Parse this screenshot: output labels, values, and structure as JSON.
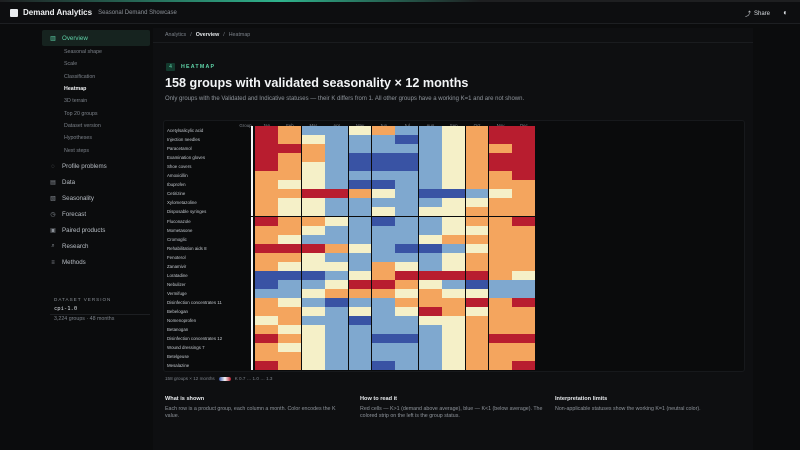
{
  "app": {
    "title": "Demand Analytics",
    "subtitle": "Seasonal Demand Showcase",
    "share_label": "Share",
    "theme_icon": "theme-toggle-icon"
  },
  "sidebar": {
    "items": [
      {
        "label": "Overview",
        "icon": "chart-icon",
        "active": true
      },
      {
        "label": "Profile problems",
        "icon": "dot-icon"
      },
      {
        "label": "Data",
        "icon": "file-icon"
      },
      {
        "label": "Seasonality",
        "icon": "doc-icon"
      },
      {
        "label": "Forecast",
        "icon": "clock-icon"
      },
      {
        "label": "Paired products",
        "icon": "box-icon"
      },
      {
        "label": "Research",
        "icon": "search-icon"
      },
      {
        "label": "Methods",
        "icon": "list-icon"
      }
    ],
    "subitems": [
      "Seasonal shape",
      "Scale",
      "Classification",
      "Heatmap",
      "3D terrain",
      "Top 20 groups",
      "Dataset version",
      "Hypotheses",
      "Next steps"
    ],
    "active_subitem": "Heatmap",
    "dataset": {
      "label": "DATASET VERSION",
      "version": "cpi-1.0",
      "meta": "3,224 groups · 48 months"
    }
  },
  "breadcrumb": [
    "Analytics",
    "Overview",
    "Heatmap"
  ],
  "section": {
    "number": "4",
    "tag": "HEATMAP",
    "title": "158 groups with validated seasonality × 12 months",
    "subtitle": "Only groups with the Validated and Indicative statuses — their K differs from 1. All other groups have a working K=1 and are not shown."
  },
  "heatmap": {
    "group_header": "Group",
    "months": [
      "Jan",
      "Feb",
      "Mar",
      "Apr",
      "May",
      "Jun",
      "Jul",
      "Aug",
      "Sep",
      "Oct",
      "Nov",
      "Dec"
    ],
    "rows": [
      "Acetylsalicylic acid",
      "Injection needles",
      "Paracetamol",
      "Examination gloves",
      "Shoe covers",
      "Amoxicillin",
      "Ibuprofen",
      "Cetirizine",
      "Xylometazoline",
      "Disposable syringes",
      "Fluconazole",
      "Mometasone",
      "Cromoglic",
      "Rehabilitation aids 8",
      "Fenoterol",
      "Zanamivir",
      "Loratadine",
      "Nebulizer",
      "Vermifuge",
      "Disinfection concentrates 11",
      "Bebelogan",
      "Nomenoprofen",
      "Betanogan",
      "Disinfection concentrates 12",
      "Wound dressings 7",
      "Betelgeuse",
      "Mesalazine"
    ],
    "values": [
      [
        2,
        1,
        -1,
        -1,
        0,
        1,
        -1,
        -1,
        0,
        1,
        2,
        2
      ],
      [
        2,
        1,
        0,
        -1,
        -1,
        -1,
        -2,
        -1,
        0,
        1,
        2,
        2
      ],
      [
        2,
        2,
        1,
        -1,
        -1,
        -1,
        -1,
        -1,
        0,
        1,
        1,
        2
      ],
      [
        2,
        1,
        1,
        -1,
        -2,
        -2,
        -2,
        -1,
        0,
        1,
        2,
        2
      ],
      [
        2,
        1,
        0,
        -1,
        -2,
        -2,
        -2,
        -1,
        0,
        1,
        2,
        2
      ],
      [
        1,
        1,
        0,
        -1,
        -1,
        -1,
        -1,
        -1,
        0,
        1,
        1,
        2
      ],
      [
        1,
        0,
        0,
        -1,
        -2,
        -2,
        -1,
        -1,
        0,
        1,
        1,
        1
      ],
      [
        1,
        1,
        2,
        2,
        1,
        0,
        -1,
        -2,
        -2,
        -1,
        0,
        1
      ],
      [
        1,
        0,
        0,
        -1,
        -1,
        -1,
        -1,
        -1,
        0,
        0,
        1,
        1
      ],
      [
        1,
        0,
        0,
        -1,
        -1,
        0,
        -1,
        0,
        0,
        1,
        1,
        1
      ],
      [
        2,
        1,
        1,
        0,
        -1,
        -2,
        -1,
        -1,
        0,
        1,
        1,
        2
      ],
      [
        1,
        1,
        0,
        -1,
        -1,
        -1,
        -1,
        -1,
        0,
        0,
        1,
        1
      ],
      [
        1,
        0,
        -1,
        -1,
        -1,
        -1,
        -1,
        0,
        1,
        1,
        1,
        1
      ],
      [
        2,
        2,
        2,
        1,
        0,
        -1,
        -2,
        -2,
        -1,
        0,
        1,
        1
      ],
      [
        1,
        1,
        0,
        -1,
        -1,
        -1,
        -1,
        -1,
        0,
        1,
        1,
        1
      ],
      [
        1,
        0,
        0,
        0,
        -1,
        1,
        0,
        -1,
        0,
        1,
        1,
        1
      ],
      [
        -2,
        -2,
        -2,
        -1,
        0,
        1,
        2,
        2,
        2,
        2,
        1,
        0
      ],
      [
        -2,
        -1,
        -1,
        0,
        2,
        2,
        1,
        0,
        -1,
        -2,
        -1,
        -1
      ],
      [
        -1,
        -1,
        0,
        1,
        1,
        1,
        0,
        1,
        0,
        0,
        -1,
        -1
      ],
      [
        1,
        0,
        -1,
        -2,
        -1,
        -1,
        1,
        1,
        1,
        2,
        1,
        2
      ],
      [
        1,
        1,
        0,
        -1,
        0,
        -1,
        0,
        2,
        1,
        0,
        1,
        1
      ],
      [
        0,
        1,
        -1,
        -1,
        -2,
        -1,
        -1,
        0,
        0,
        1,
        1,
        1
      ],
      [
        1,
        0,
        0,
        -1,
        -1,
        -1,
        -1,
        -1,
        0,
        1,
        1,
        1
      ],
      [
        2,
        1,
        0,
        -1,
        -1,
        -2,
        -2,
        -1,
        0,
        1,
        2,
        2
      ],
      [
        1,
        0,
        0,
        -1,
        -1,
        -1,
        -1,
        -1,
        0,
        1,
        1,
        1
      ],
      [
        1,
        1,
        0,
        -1,
        -1,
        -1,
        -1,
        -1,
        0,
        1,
        1,
        1
      ],
      [
        2,
        1,
        0,
        -1,
        -1,
        -2,
        -1,
        -1,
        0,
        1,
        1,
        2
      ]
    ],
    "colors": {
      "-2": "#3953a4",
      "-1": "#7fa8cf",
      "0": "#f5f0c8",
      "1": "#f4a55e",
      "2": "#b81d2f"
    },
    "legend": "158 groups × 12 months",
    "legend_scale": "K 0.7 … 1.0 … 1.3"
  },
  "info": [
    {
      "title": "What is shown",
      "text": "Each row is a product group, each column a month. Color encodes the K value."
    },
    {
      "title": "How to read it",
      "text": "Red cells — K>1 (demand above average), blue — K<1 (below average). The colored strip on the left is the group status."
    },
    {
      "title": "Interpretation limits",
      "text": "Non-applicable statuses show the working K=1 (neutral color)."
    }
  ]
}
